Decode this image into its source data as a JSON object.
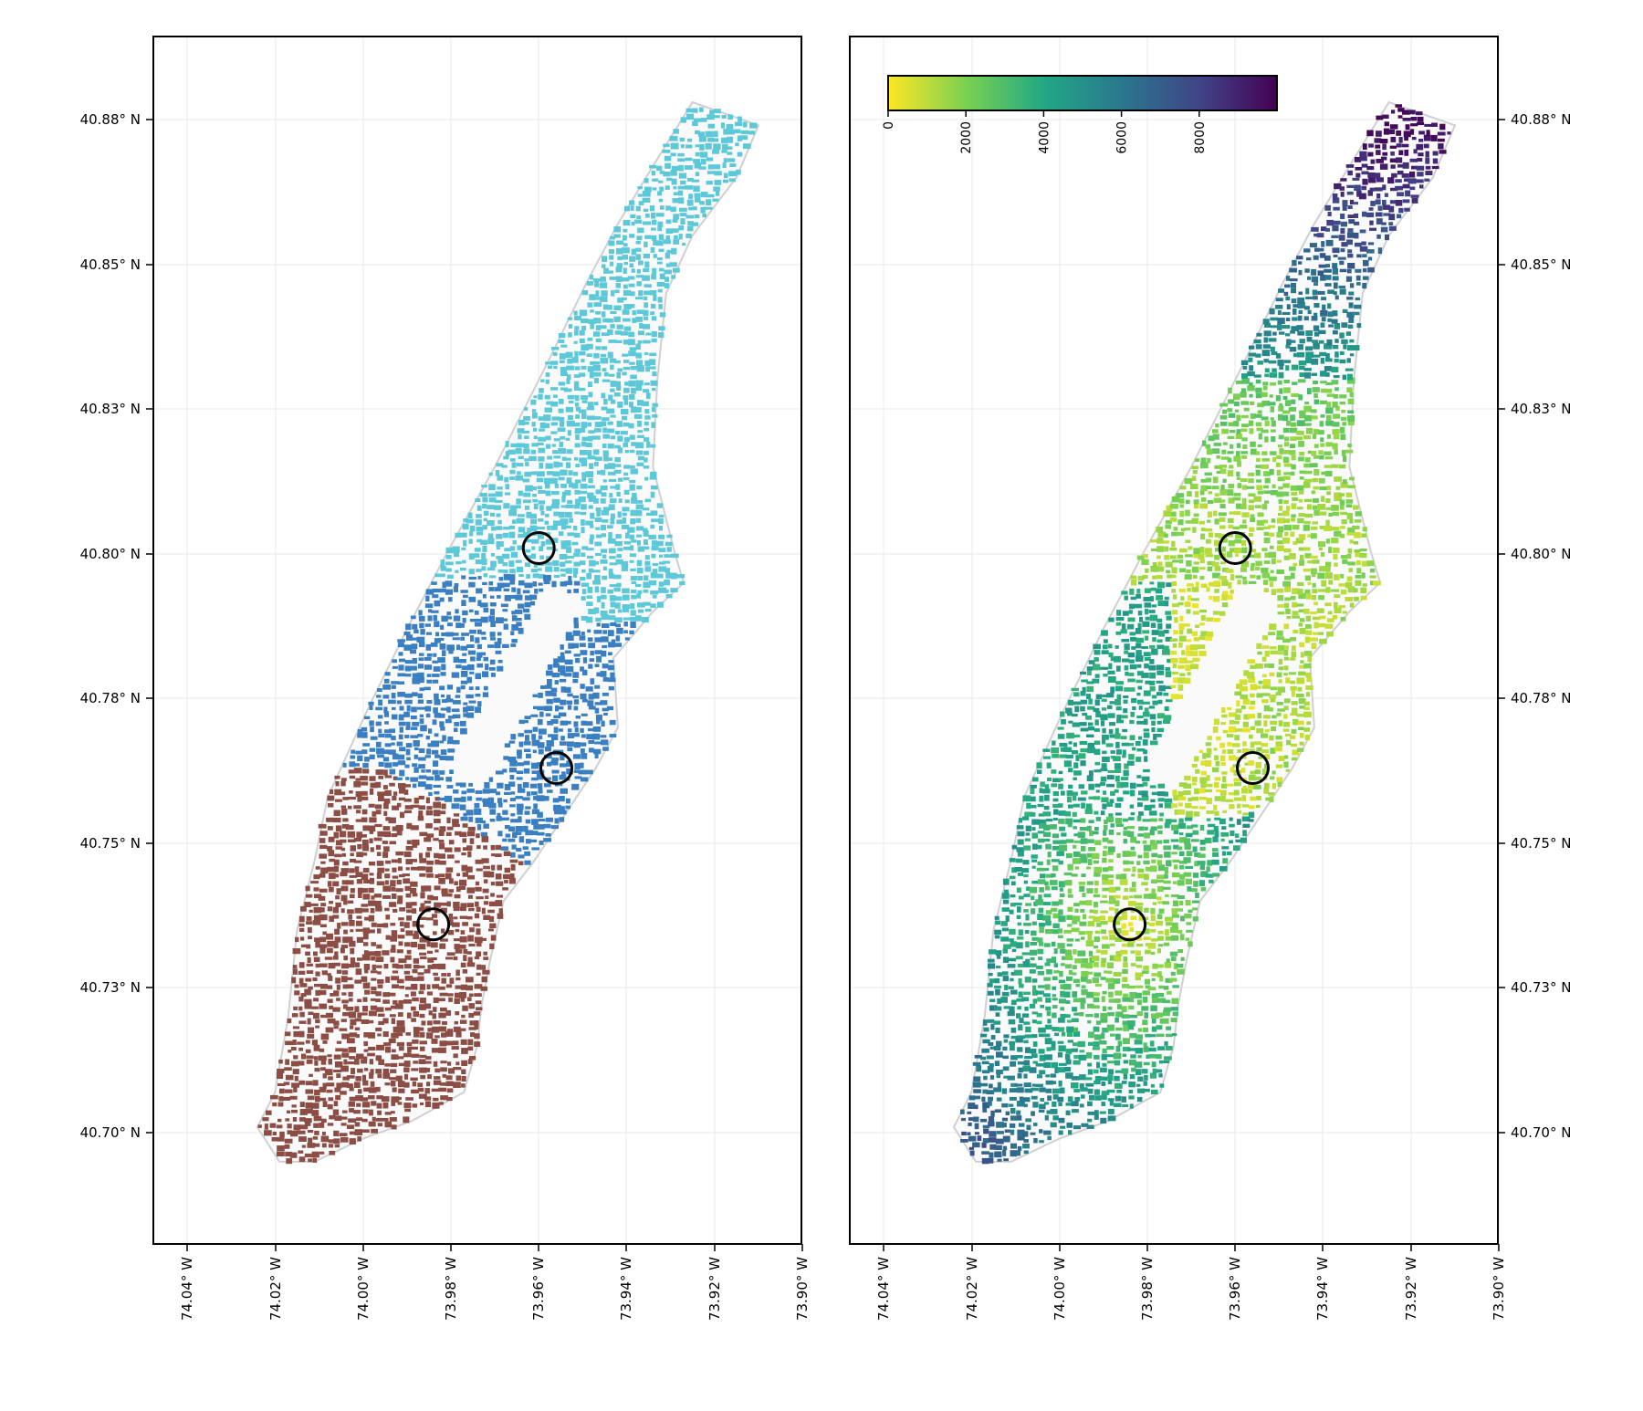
{
  "figure": {
    "panels": [
      {
        "name": "left-map",
        "style": "categorical",
        "zone_colors": {
          "north": "#5cc8d8",
          "middle": "#3a7fc1",
          "south": "#8b4d44"
        },
        "y_ticks_side": "left"
      },
      {
        "name": "right-map",
        "style": "continuous",
        "colormap": "viridis_r",
        "y_ticks_side": "right"
      }
    ],
    "x_ticks": [
      "74.04° W",
      "74.02° W",
      "74.00° W",
      "73.98° W",
      "73.96° W",
      "73.94° W",
      "73.92° W",
      "73.90° W"
    ],
    "y_ticks": [
      "40.88° N",
      "40.85° N",
      "40.83° N",
      "40.80° N",
      "40.78° N",
      "40.75° N",
      "40.73° N",
      "40.70° N"
    ],
    "colorbar": {
      "ticks": [
        "0",
        "2000",
        "4000",
        "6000",
        "8000"
      ],
      "tick_values": [
        0,
        2000,
        4000,
        6000,
        8000
      ],
      "range": [
        0,
        10000
      ],
      "colors": [
        "#fde725",
        "#7ad151",
        "#22a884",
        "#2a788e",
        "#414487",
        "#440154"
      ],
      "location": "top-left"
    },
    "highlight_markers": [
      {
        "name": "marker-1",
        "lon": -73.96,
        "lat": 40.806
      },
      {
        "name": "marker-2",
        "lon": -73.956,
        "lat": 40.768
      },
      {
        "name": "marker-3",
        "lon": -73.984,
        "lat": 40.741
      }
    ],
    "grid": true,
    "outline_color": "#d0d0d0",
    "marker_color": "#000000"
  }
}
